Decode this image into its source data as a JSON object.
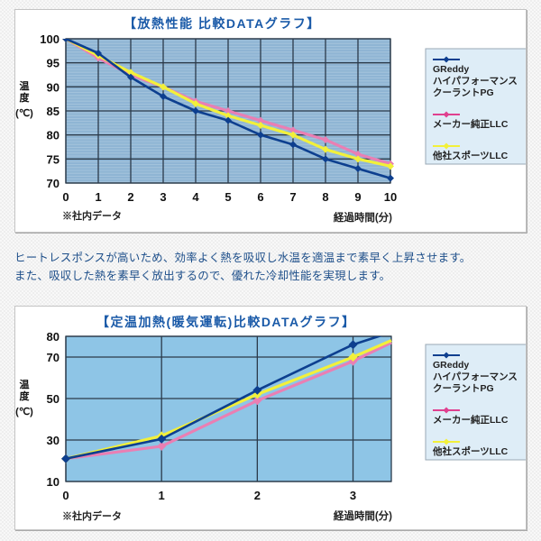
{
  "chart_data": [
    {
      "type": "line",
      "title": "【放熱性能 比較DATAグラフ】",
      "xlabel": "経過時間(分)",
      "ylabel": "温度(℃)",
      "note": "※社内データ",
      "x": [
        0,
        1,
        2,
        3,
        4,
        5,
        6,
        7,
        8,
        9,
        10
      ],
      "xticks": [
        "0",
        "1",
        "2",
        "3",
        "4",
        "5",
        "6",
        "7",
        "8",
        "9",
        "10"
      ],
      "yticks": [
        "100",
        "95",
        "90",
        "85",
        "80",
        "75",
        "70"
      ],
      "ylim": [
        70,
        100
      ],
      "xlim": [
        0,
        10
      ],
      "grid": true,
      "legend_position": "right",
      "series": [
        {
          "name": "GReddy ハイパフォーマンス クーラントPG",
          "color": "#0d3f8f",
          "values": [
            100,
            97,
            92,
            88,
            85,
            83,
            80,
            78,
            75,
            73,
            71
          ]
        },
        {
          "name": "メーカー純正LLC",
          "color": "#e878b0",
          "values": [
            100,
            96,
            92.5,
            90,
            87,
            85,
            83,
            81,
            79,
            76,
            74
          ]
        },
        {
          "name": "他社スポーツLLC",
          "color": "#f2f03a",
          "values": [
            100,
            96.5,
            93,
            90,
            86.5,
            84,
            82,
            80,
            77,
            75,
            73.5
          ]
        }
      ]
    },
    {
      "type": "line",
      "title": "【定温加熱(暖気運転)比較DATAグラフ】",
      "xlabel": "経過時間(分)",
      "ylabel": "温度(℃)",
      "note": "※社内データ",
      "x": [
        0,
        1,
        2,
        3
      ],
      "xticks": [
        "0",
        "1",
        "2",
        "3"
      ],
      "yticks": [
        "80",
        "70",
        "50",
        "30",
        "10"
      ],
      "ylim": [
        10,
        80
      ],
      "xlim": [
        0,
        3.4
      ],
      "grid": true,
      "legend_position": "right",
      "series": [
        {
          "name": "GReddy ハイパフォーマンス クーラントPG",
          "color": "#0d3f8f",
          "values": [
            21,
            30.5,
            54,
            76
          ]
        },
        {
          "name": "メーカー純正LLC",
          "color": "#e878b0",
          "values": [
            21,
            27,
            49,
            68
          ]
        },
        {
          "name": "他社スポーツLLC",
          "color": "#f2f03a",
          "values": [
            21,
            32,
            52,
            70
          ]
        }
      ]
    }
  ],
  "chart1": {
    "title": "【放熱性能 比較DATAグラフ】",
    "ylabel_chars": [
      "温",
      "度",
      "(℃)"
    ],
    "xlabel": "経過時間(分)",
    "note": "※社内データ",
    "xticks": [
      "0",
      "1",
      "2",
      "3",
      "4",
      "5",
      "6",
      "7",
      "8",
      "9",
      "10"
    ],
    "yticks": [
      "100",
      "95",
      "90",
      "85",
      "80",
      "75",
      "70"
    ],
    "legend": [
      {
        "lines": [
          "GReddy",
          "ハイパフォーマンス",
          "クーラントPG"
        ],
        "color": "#0d3f8f"
      },
      {
        "lines": [
          "メーカー純正LLC"
        ],
        "color": "#e0408f"
      },
      {
        "lines": [
          "他社スポーツLLC"
        ],
        "color": "#f2f03a"
      }
    ]
  },
  "chart2": {
    "title": "【定温加熱(暖気運転)比較DATAグラフ】",
    "xlabel": "経過時間(分)",
    "note": "※社内データ",
    "xticks": [
      "0",
      "1",
      "2",
      "3"
    ],
    "yticks": [
      "80",
      "70",
      "50",
      "30",
      "10"
    ],
    "legend": [
      {
        "lines": [
          "GReddy",
          "ハイパフォーマンス",
          "クーラントPG"
        ],
        "color": "#0d3f8f"
      },
      {
        "lines": [
          "メーカー純正LLC"
        ],
        "color": "#e0408f"
      },
      {
        "lines": [
          "他社スポーツLLC"
        ],
        "color": "#f2f03a"
      }
    ]
  },
  "description": {
    "line1": "ヒートレスポンスが高いため、効率よく熱を吸収し水温を適温まで素早く上昇させます。",
    "line2": "また、吸収した熱を素早く放出するので、優れた冷却性能を実現します。"
  },
  "colors": {
    "title": "#1a5aa8",
    "plot_bg1": "#8fb6d6",
    "plot_bg2": "#8ec6e6",
    "legend_bg": "#deedf7",
    "text": "#1e4f8a"
  }
}
